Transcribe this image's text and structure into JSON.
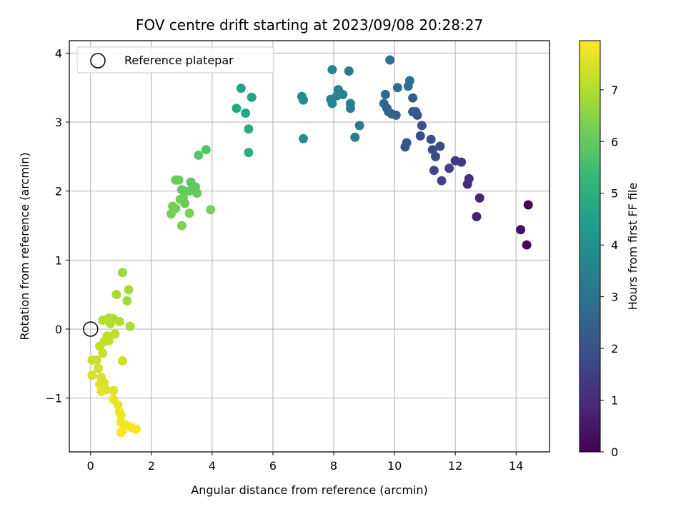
{
  "chart_data": {
    "type": "scatter",
    "title": "FOV centre drift starting at 2023/09/08 20:28:27",
    "xlabel": "Angular distance from reference (arcmin)",
    "ylabel": "Rotation from reference (arcmin)",
    "xlim": [
      -0.7,
      15.1
    ],
    "ylim": [
      -1.78,
      4.18
    ],
    "xticks": [
      0,
      2,
      4,
      6,
      8,
      10,
      12,
      14
    ],
    "yticks": [
      -1,
      0,
      1,
      2,
      3,
      4
    ],
    "xtick_labels": [
      "0",
      "2",
      "4",
      "6",
      "8",
      "10",
      "12",
      "14"
    ],
    "ytick_labels": [
      "−1",
      "0",
      "1",
      "2",
      "3",
      "4"
    ],
    "grid": true,
    "legend": {
      "position": "top-left",
      "label": "Reference platepar",
      "marker": "open-circle"
    },
    "reference_point": {
      "x": 0,
      "y": 0
    },
    "colorbar": {
      "label": "Hours from first FF file",
      "range": [
        0,
        7.95
      ],
      "ticks": [
        0,
        1,
        2,
        3,
        4,
        5,
        6,
        7
      ],
      "tick_labels": [
        "0",
        "1",
        "2",
        "3",
        "4",
        "5",
        "6",
        "7"
      ],
      "colormap": "viridis",
      "colors": [
        "#440154",
        "#482878",
        "#3e4989",
        "#31688e",
        "#26828e",
        "#1f9e89",
        "#35b779",
        "#6ece58",
        "#b5de2b",
        "#fde725"
      ]
    },
    "series": [
      {
        "points": [
          {
            "x": 14.4,
            "y": 1.8,
            "t": 0.05
          },
          {
            "x": 14.35,
            "y": 1.22,
            "t": 0.1
          },
          {
            "x": 14.15,
            "y": 1.44,
            "t": 0.3
          },
          {
            "x": 12.7,
            "y": 1.63,
            "t": 0.7
          },
          {
            "x": 12.8,
            "y": 1.9,
            "t": 0.8
          },
          {
            "x": 12.4,
            "y": 2.1,
            "t": 1.0
          },
          {
            "x": 12.45,
            "y": 2.18,
            "t": 1.1
          },
          {
            "x": 12.2,
            "y": 2.42,
            "t": 1.3
          },
          {
            "x": 12.0,
            "y": 2.44,
            "t": 1.4
          },
          {
            "x": 11.8,
            "y": 2.33,
            "t": 1.5
          },
          {
            "x": 11.55,
            "y": 2.15,
            "t": 1.6
          },
          {
            "x": 11.3,
            "y": 2.3,
            "t": 1.7
          },
          {
            "x": 11.35,
            "y": 2.5,
            "t": 1.75
          },
          {
            "x": 11.25,
            "y": 2.6,
            "t": 1.8
          },
          {
            "x": 11.5,
            "y": 2.65,
            "t": 1.85
          },
          {
            "x": 11.2,
            "y": 2.75,
            "t": 1.9
          },
          {
            "x": 10.85,
            "y": 2.8,
            "t": 1.95
          },
          {
            "x": 10.9,
            "y": 2.95,
            "t": 2.0
          },
          {
            "x": 10.35,
            "y": 2.64,
            "t": 2.05
          },
          {
            "x": 10.4,
            "y": 2.7,
            "t": 2.1
          },
          {
            "x": 10.75,
            "y": 3.1,
            "t": 2.15
          },
          {
            "x": 10.6,
            "y": 3.15,
            "t": 2.2
          },
          {
            "x": 10.7,
            "y": 3.15,
            "t": 2.25
          },
          {
            "x": 10.6,
            "y": 3.35,
            "t": 2.3
          },
          {
            "x": 10.05,
            "y": 3.1,
            "t": 2.4
          },
          {
            "x": 9.9,
            "y": 3.12,
            "t": 2.45
          },
          {
            "x": 9.8,
            "y": 3.15,
            "t": 2.5
          },
          {
            "x": 9.75,
            "y": 3.2,
            "t": 2.55
          },
          {
            "x": 9.65,
            "y": 3.27,
            "t": 2.6
          },
          {
            "x": 9.7,
            "y": 3.4,
            "t": 2.7
          },
          {
            "x": 10.1,
            "y": 3.5,
            "t": 2.8
          },
          {
            "x": 10.45,
            "y": 3.52,
            "t": 2.85
          },
          {
            "x": 10.5,
            "y": 3.6,
            "t": 2.9
          },
          {
            "x": 9.85,
            "y": 3.9,
            "t": 3.0
          },
          {
            "x": 8.5,
            "y": 3.74,
            "t": 3.2
          },
          {
            "x": 8.85,
            "y": 2.95,
            "t": 3.3
          },
          {
            "x": 8.7,
            "y": 2.78,
            "t": 3.35
          },
          {
            "x": 8.55,
            "y": 3.2,
            "t": 3.4
          },
          {
            "x": 8.55,
            "y": 3.27,
            "t": 3.45
          },
          {
            "x": 8.3,
            "y": 3.4,
            "t": 3.5
          },
          {
            "x": 8.15,
            "y": 3.47,
            "t": 3.55
          },
          {
            "x": 8.1,
            "y": 3.38,
            "t": 3.6
          },
          {
            "x": 7.9,
            "y": 3.33,
            "t": 3.65
          },
          {
            "x": 7.95,
            "y": 3.27,
            "t": 3.7
          },
          {
            "x": 7.95,
            "y": 3.76,
            "t": 3.75
          },
          {
            "x": 6.95,
            "y": 3.37,
            "t": 3.85
          },
          {
            "x": 7.0,
            "y": 3.32,
            "t": 3.9
          },
          {
            "x": 7.0,
            "y": 2.76,
            "t": 3.95
          },
          {
            "x": 5.3,
            "y": 3.36,
            "t": 4.55
          },
          {
            "x": 4.95,
            "y": 3.49,
            "t": 4.6
          },
          {
            "x": 5.1,
            "y": 3.13,
            "t": 4.7
          },
          {
            "x": 4.8,
            "y": 3.2,
            "t": 4.8
          },
          {
            "x": 5.2,
            "y": 2.9,
            "t": 4.85
          },
          {
            "x": 5.2,
            "y": 2.56,
            "t": 4.9
          },
          {
            "x": 3.8,
            "y": 2.6,
            "t": 5.8
          },
          {
            "x": 3.55,
            "y": 2.52,
            "t": 5.85
          },
          {
            "x": 3.3,
            "y": 2.13,
            "t": 5.9
          },
          {
            "x": 3.45,
            "y": 2.06,
            "t": 5.95
          },
          {
            "x": 3.5,
            "y": 1.97,
            "t": 6.0
          },
          {
            "x": 3.25,
            "y": 2.0,
            "t": 6.0
          },
          {
            "x": 3.1,
            "y": 2.0,
            "t": 6.05
          },
          {
            "x": 3.0,
            "y": 2.02,
            "t": 6.05
          },
          {
            "x": 2.8,
            "y": 2.16,
            "t": 6.1
          },
          {
            "x": 2.9,
            "y": 2.16,
            "t": 6.1
          },
          {
            "x": 3.05,
            "y": 1.9,
            "t": 6.15
          },
          {
            "x": 3.1,
            "y": 1.82,
            "t": 6.15
          },
          {
            "x": 2.95,
            "y": 1.88,
            "t": 6.2
          },
          {
            "x": 2.7,
            "y": 1.78,
            "t": 6.2
          },
          {
            "x": 2.8,
            "y": 1.75,
            "t": 6.25
          },
          {
            "x": 2.65,
            "y": 1.67,
            "t": 6.25
          },
          {
            "x": 3.25,
            "y": 1.68,
            "t": 6.3
          },
          {
            "x": 3.95,
            "y": 1.73,
            "t": 6.3
          },
          {
            "x": 3.0,
            "y": 1.5,
            "t": 6.35
          },
          {
            "x": 1.05,
            "y": 0.82,
            "t": 6.75
          },
          {
            "x": 1.25,
            "y": 0.57,
            "t": 6.8
          },
          {
            "x": 1.2,
            "y": 0.41,
            "t": 6.85
          },
          {
            "x": 0.85,
            "y": 0.5,
            "t": 6.9
          },
          {
            "x": 1.3,
            "y": 0.04,
            "t": 6.95
          },
          {
            "x": 0.95,
            "y": 0.11,
            "t": 7.0
          },
          {
            "x": 0.75,
            "y": 0.15,
            "t": 7.0
          },
          {
            "x": 0.6,
            "y": 0.16,
            "t": 7.05
          },
          {
            "x": 0.65,
            "y": 0.08,
            "t": 7.05
          },
          {
            "x": 0.4,
            "y": 0.13,
            "t": 7.1
          },
          {
            "x": 0.8,
            "y": -0.07,
            "t": 7.15
          },
          {
            "x": 0.55,
            "y": -0.1,
            "t": 7.15
          },
          {
            "x": 0.45,
            "y": -0.18,
            "t": 7.2
          },
          {
            "x": 0.6,
            "y": -0.17,
            "t": 7.2
          },
          {
            "x": 0.3,
            "y": -0.25,
            "t": 7.25
          },
          {
            "x": 0.4,
            "y": -0.35,
            "t": 7.3
          },
          {
            "x": 0.2,
            "y": -0.45,
            "t": 7.3
          },
          {
            "x": 0.05,
            "y": -0.45,
            "t": 7.35
          },
          {
            "x": 0.25,
            "y": -0.57,
            "t": 7.4
          },
          {
            "x": 1.05,
            "y": -0.46,
            "t": 7.4
          },
          {
            "x": 0.05,
            "y": -0.67,
            "t": 7.45
          },
          {
            "x": 0.35,
            "y": -0.7,
            "t": 7.5
          },
          {
            "x": 0.45,
            "y": -0.78,
            "t": 7.5
          },
          {
            "x": 0.3,
            "y": -0.8,
            "t": 7.55
          },
          {
            "x": 0.5,
            "y": -0.88,
            "t": 7.55
          },
          {
            "x": 0.35,
            "y": -0.9,
            "t": 7.6
          },
          {
            "x": 0.75,
            "y": -0.89,
            "t": 7.6
          },
          {
            "x": 0.75,
            "y": -1.02,
            "t": 7.65
          },
          {
            "x": 0.9,
            "y": -1.1,
            "t": 7.7
          },
          {
            "x": 0.95,
            "y": -1.2,
            "t": 7.75
          },
          {
            "x": 1.0,
            "y": -1.25,
            "t": 7.75
          },
          {
            "x": 1.0,
            "y": -1.35,
            "t": 7.8
          },
          {
            "x": 1.1,
            "y": -1.38,
            "t": 7.8
          },
          {
            "x": 1.2,
            "y": -1.4,
            "t": 7.85
          },
          {
            "x": 1.35,
            "y": -1.43,
            "t": 7.85
          },
          {
            "x": 1.5,
            "y": -1.45,
            "t": 7.9
          },
          {
            "x": 1.05,
            "y": -1.47,
            "t": 7.9
          },
          {
            "x": 1.0,
            "y": -1.5,
            "t": 7.95
          }
        ]
      }
    ]
  }
}
